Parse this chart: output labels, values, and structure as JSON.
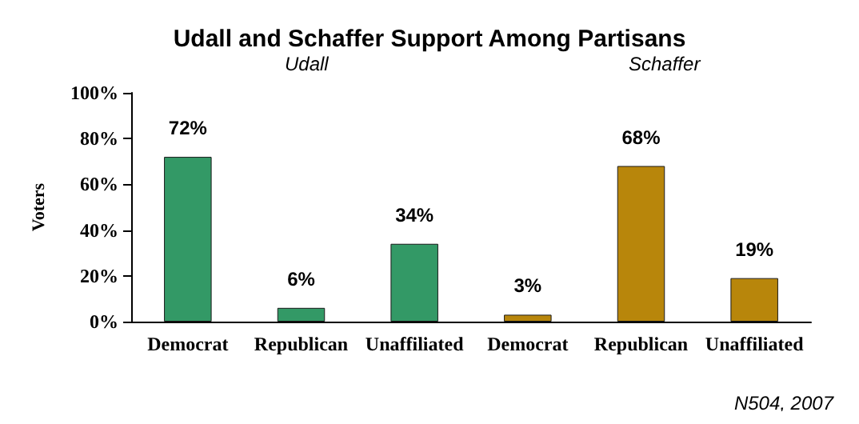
{
  "chart_data": {
    "type": "bar",
    "title": "Udall and Schaffer Support Among Partisans",
    "ylabel": "Voters",
    "categories": [
      "Democrat",
      "Republican",
      "Unaffiliated",
      "Democrat",
      "Republican",
      "Unaffiliated"
    ],
    "values": [
      72,
      6,
      34,
      3,
      68,
      19
    ],
    "value_labels": [
      "72%",
      "6%",
      "34%",
      "3%",
      "68%",
      "19%"
    ],
    "colors": [
      "#339966",
      "#339966",
      "#339966",
      "#b8860b",
      "#b8860b",
      "#b8860b"
    ],
    "ylim": [
      0,
      100
    ],
    "yticks": [
      {
        "value": 0,
        "label": "0%"
      },
      {
        "value": 20,
        "label": "20%"
      },
      {
        "value": 40,
        "label": "40%"
      },
      {
        "value": 60,
        "label": "60%"
      },
      {
        "value": 80,
        "label": "80%"
      },
      {
        "value": 100,
        "label": "100%"
      }
    ],
    "grid": false,
    "annotations": [
      "Udall",
      "Schaffer",
      "N504, 2007"
    ]
  }
}
